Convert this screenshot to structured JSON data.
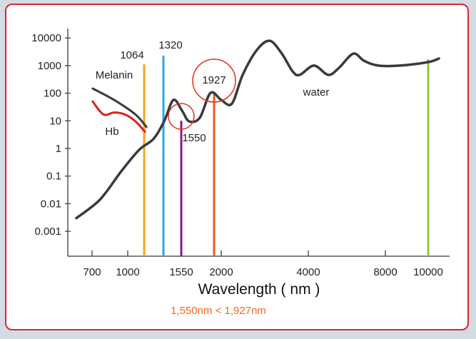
{
  "chart_data": {
    "type": "line",
    "xlabel": "Wavelength ( nm )",
    "ylabel": "",
    "yscale": "log",
    "ylim": [
      0.001,
      10000
    ],
    "y_ticks": [
      "10000",
      "1000",
      "100",
      "10",
      "1",
      "0.1",
      "0.01",
      "0.001"
    ],
    "x_ticks": [
      "700",
      "1000",
      "1550",
      "2000",
      "4000",
      "8000",
      "10000"
    ],
    "series": [
      {
        "name": "water",
        "color": "#3a3a3a",
        "points": [
          [
            600,
            0.003
          ],
          [
            766,
            0.014
          ],
          [
            946,
            0.15
          ],
          [
            1045,
            0.9
          ],
          [
            1187,
            2.2
          ],
          [
            1329,
            9.6
          ],
          [
            1449,
            57
          ],
          [
            1560,
            23
          ],
          [
            1640,
            9.6
          ],
          [
            1763,
            13
          ],
          [
            1886,
            103
          ],
          [
            2000,
            57
          ],
          [
            2246,
            42
          ],
          [
            2492,
            460
          ],
          [
            2820,
            3700
          ],
          [
            3115,
            7900
          ],
          [
            3393,
            2700
          ],
          [
            3639,
            620
          ],
          [
            3803,
            460
          ],
          [
            4296,
            1000
          ],
          [
            5037,
            460
          ],
          [
            5593,
            830
          ],
          [
            6333,
            2700
          ],
          [
            6889,
            1500
          ],
          [
            7630,
            1000
          ],
          [
            8667,
            1000
          ],
          [
            10000,
            1340
          ],
          [
            12000,
            1800
          ]
        ]
      },
      {
        "name": "Melanin",
        "color": "#3a3a3a",
        "points": [
          [
            705,
            148
          ],
          [
            886,
            57
          ],
          [
            1030,
            17
          ],
          [
            1094,
            6
          ]
        ]
      },
      {
        "name": "Hb",
        "color": "#e0201a",
        "points": [
          [
            705,
            50
          ],
          [
            796,
            17
          ],
          [
            886,
            20
          ],
          [
            976,
            17
          ],
          [
            1030,
            9.6
          ],
          [
            1075,
            4
          ]
        ]
      }
    ],
    "markers": [
      {
        "label": "1064",
        "wavelength": 1064,
        "top": 1100,
        "color": "#f5a623",
        "circled": false
      },
      {
        "label": "1320",
        "wavelength": 1320,
        "top": 2300,
        "color": "#29a8e0",
        "circled": false
      },
      {
        "label": "1550",
        "wavelength": 1550,
        "top": 10,
        "color": "#8b1a8b",
        "circled": true
      },
      {
        "label": "1927",
        "wavelength": 1927,
        "top": 100,
        "color": "#e8601c",
        "circled": true
      },
      {
        "label": "",
        "wavelength": 10000,
        "top": 1700,
        "color": "#8dc63f",
        "circled": false
      }
    ],
    "annotations": {
      "melanin": "Melanin",
      "hb": "Hb",
      "water": "water",
      "comparison": "1,550nm  <  1,927nm"
    },
    "comparison_color": "#ef6a1c",
    "circle_color": "#e0301e"
  }
}
